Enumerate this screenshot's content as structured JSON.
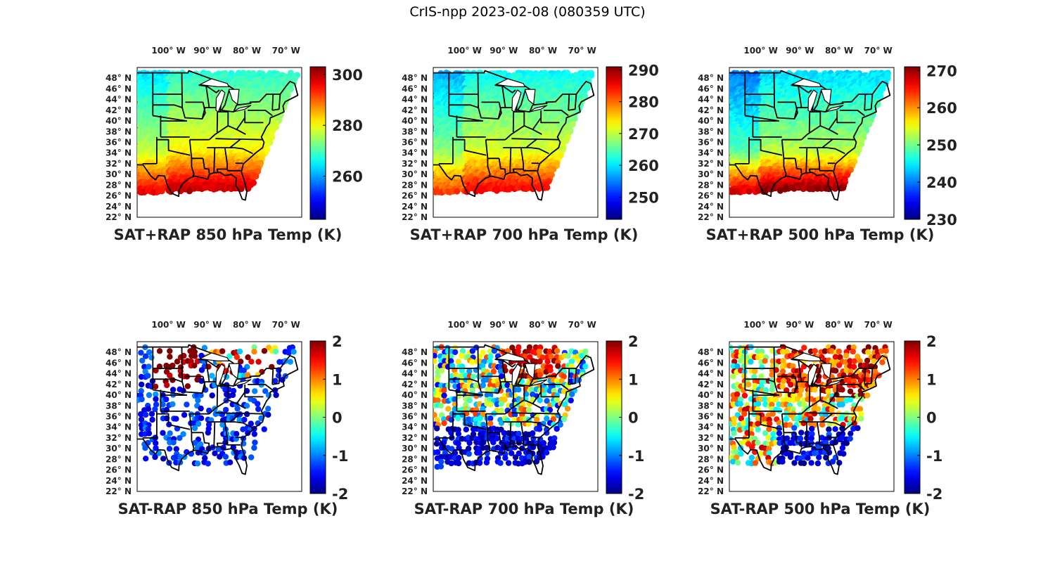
{
  "title": "CrIS-npp 2023-02-08 (080359 UTC)",
  "map": {
    "lon_labels": [
      "100° W",
      "90° W",
      "80° W",
      "70° W"
    ],
    "lat_labels": [
      "48° N",
      "46° N",
      "44° N",
      "42° N",
      "40° N",
      "38° N",
      "36° N",
      "34° N",
      "32° N",
      "30° N",
      "28° N",
      "26° N",
      "24° N",
      "22° N"
    ],
    "colormap": "jet",
    "border_color": "#000000"
  },
  "panels": [
    {
      "label": "SAT+RAP 850 hPa Temp (K)",
      "colorbar": {
        "min": 243,
        "max": 303,
        "ticks": [
          "260",
          "280",
          "300"
        ]
      },
      "field": "temp",
      "base": 274,
      "gradient": 0.9,
      "warm_south": 12,
      "coverage": "full"
    },
    {
      "label": "SAT+RAP 700 hPa Temp (K)",
      "colorbar": {
        "min": 243,
        "max": 291,
        "ticks": [
          "250",
          "260",
          "270",
          "280",
          "290"
        ]
      },
      "field": "temp",
      "base": 266,
      "gradient": 0.7,
      "warm_south": 9,
      "coverage": "full"
    },
    {
      "label": "SAT+RAP 500 hPa Temp (K)",
      "colorbar": {
        "min": 230,
        "max": 271,
        "ticks": [
          "230",
          "240",
          "250",
          "260",
          "270"
        ]
      },
      "field": "temp",
      "base": 248,
      "gradient": 0.6,
      "warm_south": 14,
      "coverage": "full"
    },
    {
      "label": "SAT-RAP 850 hPa Temp (K)",
      "colorbar": {
        "min": -2,
        "max": 2,
        "ticks": [
          "-2",
          "-1",
          "0",
          "1",
          "2"
        ]
      },
      "field": "diff850",
      "coverage": "sparse"
    },
    {
      "label": "SAT-RAP 700 hPa Temp (K)",
      "colorbar": {
        "min": -2,
        "max": 2,
        "ticks": [
          "-2",
          "-1",
          "0",
          "1",
          "2"
        ]
      },
      "field": "diff700",
      "coverage": "partial"
    },
    {
      "label": "SAT-RAP 500 hPa Temp (K)",
      "colorbar": {
        "min": -2,
        "max": 2,
        "ticks": [
          "-2",
          "-1",
          "0",
          "1",
          "2"
        ]
      },
      "field": "diff500",
      "coverage": "partial"
    }
  ]
}
